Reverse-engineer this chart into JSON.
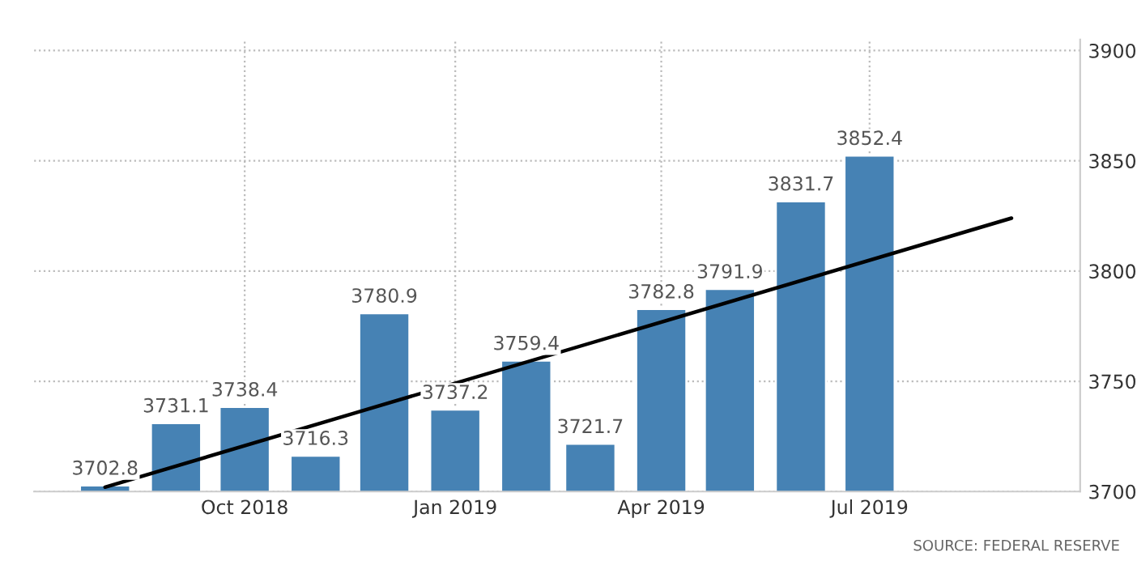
{
  "chart_data": {
    "type": "bar",
    "x": [
      "2018-08",
      "2018-09",
      "2018-10",
      "2018-11",
      "2018-12",
      "2019-01",
      "2019-02",
      "2019-03",
      "2019-04",
      "2019-05",
      "2019-06",
      "2019-07"
    ],
    "series": [
      {
        "color": "#4682b4",
        "values": [
          3702.8,
          3731.1,
          3738.4,
          3716.3,
          3780.9,
          3737.2,
          3759.4,
          3721.7,
          3782.8,
          3791.9,
          3831.7,
          3852.4
        ],
        "value_labels": [
          "3702.8",
          "3731.1",
          "3738.4",
          "3716.3",
          "3780.9",
          "3737.2",
          "3759.4",
          "3721.7",
          "3782.8",
          "3791.9",
          "3831.7",
          "3852.4"
        ]
      },
      {
        "type": "line",
        "color": "#000000",
        "x": [
          "2018-08",
          "2019-09"
        ],
        "values": [
          3702,
          3824
        ]
      }
    ],
    "xlim": [
      "2018-07",
      "2019-10"
    ],
    "xticks": [
      {
        "value": "2018-10",
        "label": "Oct 2018"
      },
      {
        "value": "2019-01",
        "label": "Jan 2019"
      },
      {
        "value": "2019-04",
        "label": "Apr 2019"
      },
      {
        "value": "2019-07",
        "label": "Jul 2019"
      }
    ],
    "ylim": [
      3700,
      3905
    ],
    "yticks": [
      3700,
      3750,
      3800,
      3850,
      3900
    ],
    "grid": true,
    "annotations": [
      "SOURCE: FEDERAL RESERVE"
    ]
  }
}
